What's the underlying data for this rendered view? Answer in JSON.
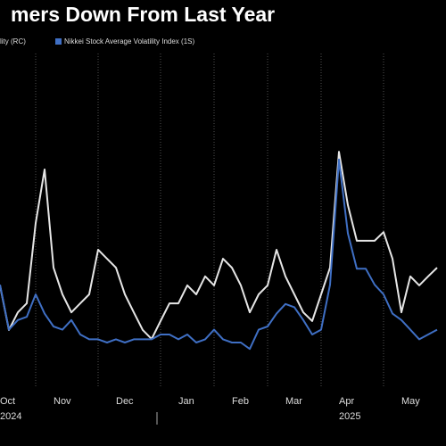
{
  "chart_data": {
    "type": "line",
    "title": "mers Down From Last Year",
    "categories": [
      null,
      "Oct",
      null,
      null,
      null,
      null,
      null,
      "Nov",
      null,
      null,
      null,
      null,
      null,
      null,
      "Dec",
      null,
      null,
      null,
      null,
      null,
      null,
      "Jan",
      null,
      null,
      null,
      null,
      null,
      "Feb",
      null,
      null,
      null,
      null,
      null,
      "Mar",
      null,
      null,
      null,
      null,
      null,
      "Apr",
      null,
      null,
      null,
      null,
      null,
      null,
      "May",
      null,
      null,
      null
    ],
    "category_years": [
      null,
      "2024",
      null,
      null,
      null,
      null,
      null,
      null,
      null,
      null,
      null,
      null,
      null,
      null,
      null,
      null,
      null,
      null,
      null,
      null,
      null,
      null,
      null,
      null,
      null,
      null,
      null,
      null,
      null,
      null,
      null,
      null,
      null,
      null,
      null,
      null,
      null,
      null,
      null,
      "2025",
      null,
      null,
      null,
      null,
      null,
      null,
      null,
      null,
      null,
      null
    ],
    "ylim": [
      0,
      100
    ],
    "grid": true,
    "series": [
      {
        "name": "lity (RC)",
        "color": "#e6e6e6",
        "values": [
          27.8,
          13.9,
          19.4,
          22.2,
          47.2,
          63.9,
          33.3,
          25,
          19.4,
          22.2,
          25,
          38.9,
          36.1,
          33.3,
          25,
          19.4,
          13.9,
          11.1,
          16.7,
          22.2,
          22.2,
          27.8,
          25,
          30.6,
          27.8,
          36.1,
          33.3,
          27.8,
          19.4,
          25,
          27.8,
          38.9,
          30.6,
          25,
          19.4,
          16.7,
          25,
          33.3,
          69.4,
          52.8,
          41.7,
          41.7,
          41.7,
          44.4,
          36.1,
          19.4,
          30.6,
          27.8,
          30.6,
          33.3
        ]
      },
      {
        "name": "Nikkei Stock Average Volatility Index (1S)",
        "color": "#3f6fc4",
        "values": [
          28,
          14,
          17,
          18,
          25,
          19,
          15,
          14,
          17,
          12.5,
          11,
          11,
          10,
          11,
          10,
          11,
          11,
          11,
          12.5,
          12.5,
          11,
          12.5,
          10,
          11,
          14,
          11,
          10,
          10,
          8,
          14,
          15,
          19,
          22,
          21,
          17,
          12.5,
          14,
          28,
          67,
          44,
          33,
          33,
          28,
          25,
          19,
          17,
          14,
          11,
          12.5,
          14
        ]
      }
    ]
  }
}
